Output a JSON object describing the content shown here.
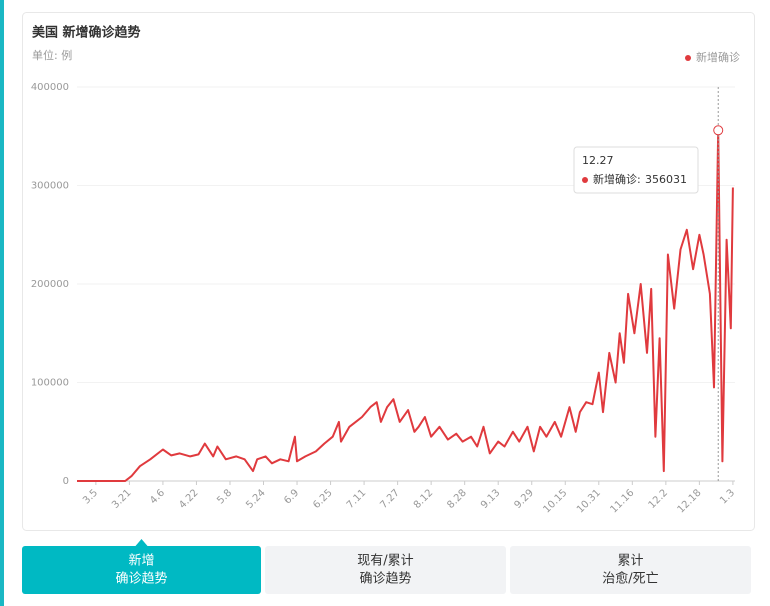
{
  "chart_data": {
    "type": "line",
    "title": "美国 新增确诊趋势",
    "unit": "单位: 例",
    "xlim": [
      56,
      370
    ],
    "xticks": [
      {
        "value": 65,
        "label": "3.5"
      },
      {
        "value": 81,
        "label": "3.21"
      },
      {
        "value": 97,
        "label": "4.6"
      },
      {
        "value": 113,
        "label": "4.22"
      },
      {
        "value": 129,
        "label": "5.8"
      },
      {
        "value": 145,
        "label": "5.24"
      },
      {
        "value": 161,
        "label": "6.9"
      },
      {
        "value": 177,
        "label": "6.25"
      },
      {
        "value": 193,
        "label": "7.11"
      },
      {
        "value": 209,
        "label": "7.27"
      },
      {
        "value": 225,
        "label": "8.12"
      },
      {
        "value": 241,
        "label": "8.28"
      },
      {
        "value": 257,
        "label": "9.13"
      },
      {
        "value": 273,
        "label": "9.29"
      },
      {
        "value": 289,
        "label": "10.15"
      },
      {
        "value": 305,
        "label": "10.31"
      },
      {
        "value": 321,
        "label": "11.16"
      },
      {
        "value": 337,
        "label": "12.2"
      },
      {
        "value": 353,
        "label": "12.18"
      },
      {
        "value": 369,
        "label": "1.3"
      }
    ],
    "ylim": [
      0,
      400000
    ],
    "yticks": [
      0,
      100000,
      200000,
      300000,
      400000
    ],
    "grid": true,
    "legend": "top-right",
    "series": [
      {
        "name": "新增确诊",
        "color": "#e03a3e",
        "x": [
          56,
          79,
          82,
          86,
          91,
          97,
          101,
          105,
          110,
          114,
          117,
          121,
          123,
          127,
          132,
          136,
          140,
          142,
          146,
          149,
          153,
          157,
          160,
          161,
          165,
          170,
          174,
          178,
          181,
          182,
          186,
          189,
          192,
          196,
          199,
          201,
          204,
          207,
          210,
          214,
          217,
          219,
          222,
          225,
          229,
          233,
          237,
          240,
          244,
          247,
          250,
          253,
          257,
          260,
          264,
          267,
          271,
          274,
          277,
          280,
          284,
          287,
          291,
          294,
          296,
          299,
          302,
          305,
          307,
          310,
          313,
          315,
          317,
          319,
          322,
          325,
          328,
          330,
          332,
          334,
          336,
          338,
          341,
          344,
          347,
          350,
          353,
          355,
          358,
          360,
          362,
          364,
          366,
          368,
          369
        ],
        "values": [
          0,
          0,
          5000,
          15000,
          22000,
          32000,
          26000,
          28000,
          25000,
          27000,
          38000,
          25000,
          35000,
          22000,
          25000,
          22000,
          10000,
          22000,
          25000,
          18000,
          22000,
          20000,
          45000,
          20000,
          25000,
          30000,
          38000,
          45000,
          60000,
          40000,
          55000,
          60000,
          65000,
          75000,
          80000,
          60000,
          75000,
          83000,
          60000,
          72000,
          50000,
          55000,
          65000,
          45000,
          55000,
          42000,
          48000,
          40000,
          45000,
          35000,
          55000,
          28000,
          40000,
          35000,
          50000,
          40000,
          55000,
          30000,
          55000,
          45000,
          60000,
          45000,
          75000,
          50000,
          70000,
          80000,
          78000,
          110000,
          70000,
          130000,
          100000,
          150000,
          120000,
          190000,
          150000,
          200000,
          130000,
          195000,
          45000,
          145000,
          10000,
          230000,
          175000,
          235000,
          255000,
          215000,
          250000,
          230000,
          190000,
          95000,
          356031,
          20000,
          245000,
          155000,
          298000
        ]
      }
    ],
    "tooltip": {
      "date": "12.27",
      "value": 356031
    }
  },
  "tabs": [
    [
      "新增",
      "确诊趋势"
    ],
    [
      "现有/累计",
      "确诊趋势"
    ],
    [
      "累计",
      "治愈/死亡"
    ]
  ],
  "active_tab": 0
}
